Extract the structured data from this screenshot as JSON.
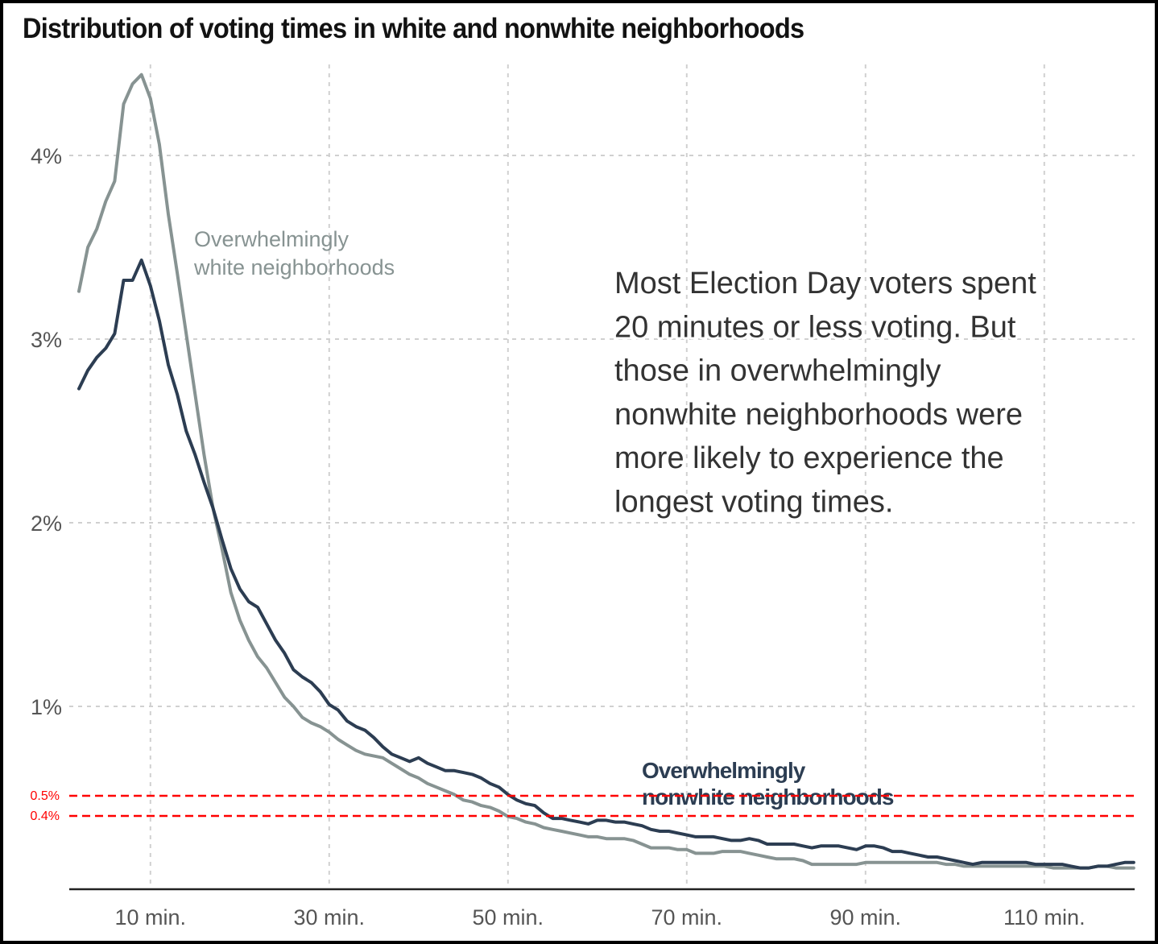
{
  "chart_data": {
    "type": "line",
    "title": "Distribution of voting times in white and nonwhite neighborhoods",
    "xlabel": "",
    "ylabel": "",
    "x_unit": "minutes",
    "xlim": [
      1,
      120
    ],
    "ylim": [
      0,
      4.6
    ],
    "grid": true,
    "x_ticks": [
      {
        "value": 10,
        "label": "10 min."
      },
      {
        "value": 30,
        "label": "30 min."
      },
      {
        "value": 50,
        "label": "50 min."
      },
      {
        "value": 70,
        "label": "70 min."
      },
      {
        "value": 90,
        "label": "90 min."
      },
      {
        "value": 110,
        "label": "110 min."
      }
    ],
    "y_ticks": [
      {
        "value": 1,
        "label": "1%"
      },
      {
        "value": 2,
        "label": "2%"
      },
      {
        "value": 3,
        "label": "3%"
      },
      {
        "value": 4,
        "label": "4%"
      }
    ],
    "x_start": 2,
    "series": [
      {
        "name": "Overwhelmingly white neighborhoods",
        "label_lines": [
          "Overwhelmingly",
          "white neighborhoods"
        ],
        "color": "#879392",
        "values": [
          3.26,
          3.5,
          3.6,
          3.75,
          3.86,
          4.28,
          4.39,
          4.44,
          4.31,
          4.06,
          3.68,
          3.36,
          3.03,
          2.7,
          2.37,
          2.08,
          1.86,
          1.62,
          1.47,
          1.36,
          1.27,
          1.21,
          1.13,
          1.05,
          1.0,
          0.94,
          0.91,
          0.89,
          0.86,
          0.82,
          0.79,
          0.76,
          0.74,
          0.73,
          0.72,
          0.69,
          0.66,
          0.63,
          0.61,
          0.58,
          0.56,
          0.54,
          0.52,
          0.49,
          0.48,
          0.46,
          0.45,
          0.43,
          0.4,
          0.39,
          0.37,
          0.36,
          0.34,
          0.33,
          0.32,
          0.31,
          0.3,
          0.29,
          0.29,
          0.28,
          0.28,
          0.28,
          0.27,
          0.25,
          0.23,
          0.23,
          0.23,
          0.22,
          0.22,
          0.2,
          0.2,
          0.2,
          0.21,
          0.21,
          0.21,
          0.2,
          0.19,
          0.18,
          0.17,
          0.17,
          0.17,
          0.16,
          0.14,
          0.14,
          0.14,
          0.14,
          0.14,
          0.14,
          0.15,
          0.15,
          0.15,
          0.15,
          0.15,
          0.15,
          0.15,
          0.15,
          0.15,
          0.14,
          0.14,
          0.13,
          0.13,
          0.13,
          0.13,
          0.13,
          0.13,
          0.13,
          0.13,
          0.13,
          0.13,
          0.12,
          0.12,
          0.12,
          0.12,
          0.12,
          0.13,
          0.13,
          0.12,
          0.12,
          0.12
        ]
      },
      {
        "name": "Overwhelmingly nonwhite neighborhoods",
        "label_lines": [
          "Overwhelmingly",
          "nonwhite neighborhoods"
        ],
        "color": "#2c3d52",
        "values": [
          2.73,
          2.83,
          2.9,
          2.95,
          3.03,
          3.32,
          3.32,
          3.43,
          3.29,
          3.1,
          2.86,
          2.7,
          2.5,
          2.37,
          2.22,
          2.08,
          1.91,
          1.75,
          1.64,
          1.57,
          1.54,
          1.45,
          1.36,
          1.29,
          1.2,
          1.16,
          1.13,
          1.08,
          1.01,
          0.98,
          0.92,
          0.89,
          0.87,
          0.83,
          0.78,
          0.74,
          0.72,
          0.7,
          0.72,
          0.69,
          0.67,
          0.65,
          0.65,
          0.64,
          0.63,
          0.61,
          0.58,
          0.56,
          0.52,
          0.49,
          0.47,
          0.46,
          0.42,
          0.39,
          0.39,
          0.38,
          0.37,
          0.36,
          0.38,
          0.38,
          0.37,
          0.37,
          0.36,
          0.35,
          0.33,
          0.32,
          0.32,
          0.31,
          0.3,
          0.29,
          0.29,
          0.29,
          0.28,
          0.27,
          0.27,
          0.28,
          0.27,
          0.25,
          0.25,
          0.25,
          0.25,
          0.24,
          0.23,
          0.24,
          0.24,
          0.24,
          0.23,
          0.22,
          0.24,
          0.24,
          0.23,
          0.21,
          0.21,
          0.2,
          0.19,
          0.18,
          0.18,
          0.17,
          0.16,
          0.15,
          0.14,
          0.15,
          0.15,
          0.15,
          0.15,
          0.15,
          0.15,
          0.14,
          0.14,
          0.14,
          0.14,
          0.13,
          0.12,
          0.12,
          0.13,
          0.13,
          0.14,
          0.15,
          0.15
        ]
      }
    ],
    "reference_lines": [
      {
        "value": 0.5,
        "label": "0.5%",
        "color": "#ff0000"
      },
      {
        "value": 0.4,
        "label": "0.4%",
        "color": "#ff0000"
      }
    ],
    "annotation": {
      "lines": [
        "Most Election Day voters spent",
        "20 minutes or less voting. But",
        "those in overwhelmingly",
        "nonwhite neighborhoods were",
        "more likely to experience the",
        "longest voting times."
      ],
      "placement": "upper-right"
    }
  }
}
